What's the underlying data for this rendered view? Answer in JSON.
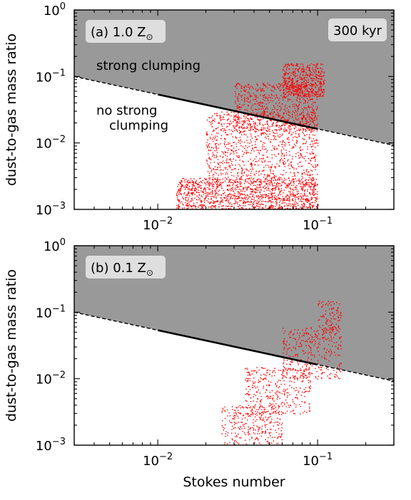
{
  "chart_data": [
    {
      "type": "scatter",
      "panel_label": "(a) 1.0 Z",
      "panel_label_sub": "⊙",
      "time_label": "300 kyr",
      "region_labels": [
        "strong clumping",
        "no strong",
        "clumping"
      ],
      "xlabel": "",
      "ylabel": "dust-to-gas mass ratio",
      "xscale": "log",
      "yscale": "log",
      "xlim": [
        0.003,
        0.3
      ],
      "ylim": [
        0.001,
        1
      ],
      "xticks": [
        {
          "base": "10",
          "exp": "−2"
        },
        {
          "base": "10",
          "exp": "−1"
        }
      ],
      "yticks": [
        {
          "base": "10",
          "exp": "−3"
        },
        {
          "base": "10",
          "exp": "−2"
        },
        {
          "base": "10",
          "exp": "−1"
        },
        {
          "base": "10",
          "exp": "0"
        }
      ],
      "threshold": {
        "boundary_at_x": [
          [
            0.003,
            0.1
          ],
          [
            0.3,
            0.0092
          ]
        ],
        "solid_range": [
          0.01,
          0.1
        ],
        "shaded": "above"
      },
      "point_color": "#ff0000",
      "shade_color": "#999999",
      "clusters": [
        {
          "stokes": [
            0.013,
            0.1
          ],
          "ratio": [
            0.001,
            0.003
          ],
          "n": 1400
        },
        {
          "stokes": [
            0.02,
            0.1
          ],
          "ratio": [
            0.003,
            0.03
          ],
          "n": 1000
        },
        {
          "stokes": [
            0.03,
            0.1
          ],
          "ratio": [
            0.015,
            0.08
          ],
          "n": 700
        },
        {
          "stokes": [
            0.06,
            0.11
          ],
          "ratio": [
            0.05,
            0.16
          ],
          "n": 500
        }
      ]
    },
    {
      "type": "scatter",
      "panel_label": "(b) 0.1 Z",
      "panel_label_sub": "⊙",
      "xlabel": "Stokes number",
      "ylabel": "dust-to-gas mass ratio",
      "xscale": "log",
      "yscale": "log",
      "xlim": [
        0.003,
        0.3
      ],
      "ylim": [
        0.001,
        1
      ],
      "xticks": [
        {
          "base": "10",
          "exp": "−2"
        },
        {
          "base": "10",
          "exp": "−1"
        }
      ],
      "yticks": [
        {
          "base": "10",
          "exp": "−3"
        },
        {
          "base": "10",
          "exp": "−2"
        },
        {
          "base": "10",
          "exp": "−1"
        },
        {
          "base": "10",
          "exp": "0"
        }
      ],
      "threshold": {
        "boundary_at_x": [
          [
            0.003,
            0.1
          ],
          [
            0.3,
            0.0092
          ]
        ],
        "solid_range": [
          0.01,
          0.1
        ],
        "shaded": "above"
      },
      "point_color": "#ff0000",
      "shade_color": "#999999",
      "clusters": [
        {
          "stokes": [
            0.025,
            0.06
          ],
          "ratio": [
            0.001,
            0.004
          ],
          "n": 300
        },
        {
          "stokes": [
            0.035,
            0.09
          ],
          "ratio": [
            0.003,
            0.015
          ],
          "n": 350
        },
        {
          "stokes": [
            0.06,
            0.14
          ],
          "ratio": [
            0.01,
            0.06
          ],
          "n": 350
        },
        {
          "stokes": [
            0.1,
            0.14
          ],
          "ratio": [
            0.05,
            0.15
          ],
          "n": 100
        }
      ]
    }
  ]
}
